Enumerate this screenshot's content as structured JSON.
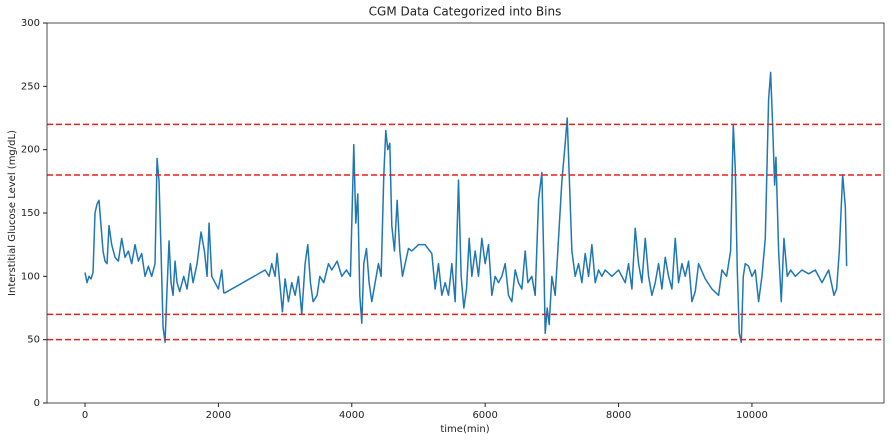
{
  "chart_data": {
    "type": "line",
    "title": "CGM Data Categorized into Bins",
    "x_label": "time(min)",
    "y_label": "Interstitial Glucose Level (mg/dL)",
    "xlim": [
      -570,
      11980
    ],
    "ylim": [
      0,
      300
    ],
    "xticks": [
      0,
      2000,
      4000,
      6000,
      8000,
      10000
    ],
    "yticks": [
      0,
      50,
      100,
      150,
      200,
      250,
      300
    ],
    "hlines": [
      50,
      70,
      180,
      220
    ],
    "hline_color": "#e8201c",
    "series": [
      {
        "color": "#1f77b4",
        "x": [
          0,
          30,
          60,
          90,
          120,
          150,
          180,
          210,
          240,
          270,
          300,
          330,
          360,
          400,
          450,
          500,
          550,
          600,
          650,
          700,
          750,
          800,
          850,
          900,
          950,
          1000,
          1050,
          1080,
          1110,
          1140,
          1170,
          1200,
          1230,
          1260,
          1290,
          1320,
          1350,
          1380,
          1420,
          1480,
          1530,
          1580,
          1620,
          1680,
          1740,
          1790,
          1830,
          1860,
          1900,
          1950,
          2000,
          2050,
          2080,
          2100,
          2700,
          2760,
          2800,
          2850,
          2880,
          2920,
          2960,
          3000,
          3050,
          3100,
          3150,
          3200,
          3250,
          3300,
          3340,
          3380,
          3420,
          3480,
          3520,
          3580,
          3650,
          3700,
          3780,
          3850,
          3920,
          3980,
          4030,
          4060,
          4090,
          4120,
          4150,
          4180,
          4220,
          4260,
          4300,
          4350,
          4400,
          4440,
          4480,
          4510,
          4540,
          4570,
          4600,
          4640,
          4680,
          4720,
          4760,
          4800,
          4850,
          4900,
          5000,
          5100,
          5200,
          5250,
          5300,
          5350,
          5400,
          5450,
          5500,
          5550,
          5600,
          5640,
          5680,
          5720,
          5760,
          5800,
          5850,
          5900,
          5950,
          6000,
          6050,
          6100,
          6150,
          6200,
          6250,
          6300,
          6350,
          6400,
          6450,
          6500,
          6550,
          6600,
          6640,
          6700,
          6750,
          6800,
          6850,
          6880,
          6900,
          6930,
          6960,
          7000,
          7050,
          7100,
          7150,
          7200,
          7230,
          7260,
          7300,
          7350,
          7400,
          7450,
          7500,
          7550,
          7600,
          7650,
          7700,
          7750,
          7800,
          7900,
          8000,
          8050,
          8100,
          8150,
          8200,
          8250,
          8300,
          8350,
          8400,
          8450,
          8500,
          8550,
          8600,
          8650,
          8700,
          8750,
          8800,
          8850,
          8900,
          8950,
          9000,
          9050,
          9100,
          9150,
          9200,
          9300,
          9400,
          9500,
          9550,
          9620,
          9680,
          9720,
          9750,
          9780,
          9810,
          9840,
          9870,
          9900,
          9950,
          10000,
          10050,
          10100,
          10150,
          10200,
          10250,
          10280,
          10310,
          10340,
          10360,
          10400,
          10440,
          10480,
          10530,
          10580,
          10650,
          10750,
          10850,
          10950,
          11050,
          11150,
          11230,
          11270,
          11310,
          11360,
          11400,
          11420
        ],
        "values": [
          103,
          95,
          100,
          98,
          103,
          150,
          157,
          160,
          140,
          120,
          112,
          110,
          140,
          125,
          115,
          112,
          130,
          115,
          120,
          110,
          125,
          112,
          118,
          100,
          108,
          100,
          110,
          193,
          175,
          120,
          60,
          48,
          90,
          128,
          95,
          85,
          112,
          95,
          88,
          100,
          90,
          110,
          95,
          110,
          135,
          120,
          100,
          142,
          100,
          95,
          90,
          105,
          87,
          87,
          105,
          100,
          110,
          100,
          118,
          95,
          72,
          98,
          80,
          95,
          85,
          100,
          70,
          110,
          125,
          95,
          80,
          85,
          100,
          95,
          110,
          105,
          112,
          100,
          105,
          100,
          204,
          142,
          165,
          85,
          63,
          110,
          122,
          95,
          80,
          95,
          110,
          100,
          180,
          215,
          200,
          205,
          140,
          120,
          160,
          120,
          100,
          110,
          122,
          120,
          125,
          125,
          118,
          90,
          110,
          85,
          95,
          85,
          110,
          80,
          176,
          100,
          75,
          90,
          130,
          100,
          120,
          100,
          130,
          110,
          125,
          85,
          100,
          95,
          100,
          110,
          85,
          80,
          105,
          95,
          90,
          120,
          95,
          100,
          85,
          160,
          182,
          110,
          55,
          75,
          62,
          100,
          85,
          130,
          175,
          205,
          225,
          180,
          120,
          100,
          110,
          95,
          118,
          100,
          125,
          95,
          105,
          100,
          105,
          100,
          105,
          100,
          95,
          110,
          90,
          138,
          110,
          95,
          130,
          100,
          85,
          95,
          110,
          90,
          115,
          100,
          90,
          130,
          95,
          110,
          100,
          112,
          80,
          88,
          110,
          98,
          90,
          85,
          105,
          100,
          120,
          220,
          185,
          105,
          55,
          48,
          100,
          110,
          108,
          100,
          105,
          80,
          100,
          130,
          240,
          261,
          220,
          172,
          194,
          120,
          80,
          130,
          100,
          105,
          100,
          105,
          102,
          105,
          95,
          105,
          85,
          90,
          120,
          180,
          155,
          108
        ]
      }
    ]
  }
}
